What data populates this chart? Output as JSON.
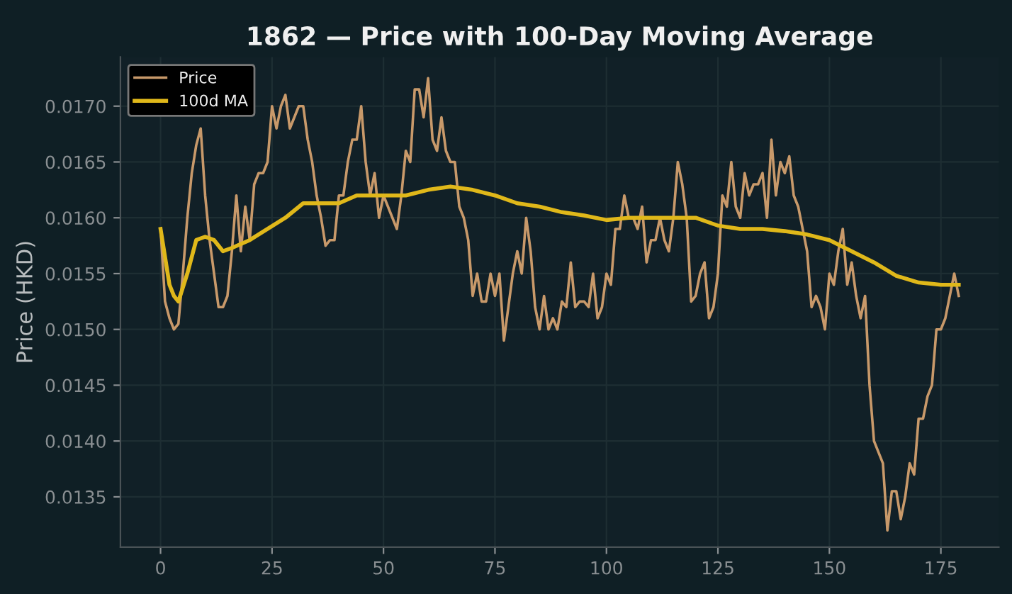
{
  "chart_data": {
    "type": "line",
    "title": "1862 — Price with 100-Day Moving Average",
    "ylabel": "Price (HKD)",
    "series": [
      {
        "name": "Price",
        "color": "#c8996a",
        "x": [
          0,
          1,
          2,
          3,
          4,
          5,
          6,
          7,
          8,
          9,
          10,
          11,
          12,
          13,
          14,
          15,
          16,
          17,
          18,
          19,
          20,
          21,
          22,
          23,
          24,
          25,
          26,
          27,
          28,
          29,
          30,
          31,
          32,
          33,
          34,
          35,
          36,
          37,
          38,
          39,
          40,
          41,
          42,
          43,
          44,
          45,
          46,
          47,
          48,
          49,
          50,
          51,
          52,
          53,
          54,
          55,
          56,
          57,
          58,
          59,
          60,
          61,
          62,
          63,
          64,
          65,
          66,
          67,
          68,
          69,
          70,
          71,
          72,
          73,
          74,
          75,
          76,
          77,
          78,
          79,
          80,
          81,
          82,
          83,
          84,
          85,
          86,
          87,
          88,
          89,
          90,
          91,
          92,
          93,
          94,
          95,
          96,
          97,
          98,
          99,
          100,
          101,
          102,
          103,
          104,
          105,
          106,
          107,
          108,
          109,
          110,
          111,
          112,
          113,
          114,
          115,
          116,
          117,
          118,
          119,
          120,
          121,
          122,
          123,
          124,
          125,
          126,
          127,
          128,
          129,
          130,
          131,
          132,
          133,
          134,
          135,
          136,
          137,
          138,
          139,
          140,
          141,
          142,
          143,
          144,
          145,
          146,
          147,
          148,
          149,
          150,
          151,
          152,
          153,
          154,
          155,
          156,
          157,
          158,
          159,
          160,
          161,
          162,
          163,
          164,
          165,
          166,
          167,
          168,
          169,
          170,
          171,
          172,
          173,
          174,
          175,
          176,
          177,
          178,
          179
        ],
        "values": [
          0.0159,
          0.01525,
          0.0151,
          0.015,
          0.01505,
          0.0155,
          0.016,
          0.0164,
          0.01665,
          0.0168,
          0.0162,
          0.0158,
          0.0155,
          0.0152,
          0.0152,
          0.0153,
          0.0157,
          0.0162,
          0.0157,
          0.0161,
          0.0158,
          0.0163,
          0.0164,
          0.0164,
          0.0165,
          0.017,
          0.0168,
          0.017,
          0.0171,
          0.0168,
          0.0169,
          0.017,
          0.017,
          0.0167,
          0.0165,
          0.0162,
          0.016,
          0.01575,
          0.0158,
          0.0158,
          0.0162,
          0.0162,
          0.0165,
          0.0167,
          0.0167,
          0.017,
          0.0165,
          0.0162,
          0.0164,
          0.016,
          0.0162,
          0.0161,
          0.016,
          0.0159,
          0.0162,
          0.0166,
          0.0165,
          0.01715,
          0.01715,
          0.0169,
          0.01725,
          0.0167,
          0.0166,
          0.0169,
          0.0166,
          0.0165,
          0.0165,
          0.0161,
          0.016,
          0.0158,
          0.0153,
          0.0155,
          0.01525,
          0.01525,
          0.0155,
          0.0153,
          0.0155,
          0.0149,
          0.0152,
          0.0155,
          0.0157,
          0.0155,
          0.016,
          0.0157,
          0.0152,
          0.015,
          0.0153,
          0.015,
          0.0151,
          0.015,
          0.01525,
          0.0152,
          0.0156,
          0.0152,
          0.01525,
          0.01525,
          0.0152,
          0.0155,
          0.0151,
          0.0152,
          0.0155,
          0.0154,
          0.0159,
          0.0159,
          0.0162,
          0.016,
          0.016,
          0.0159,
          0.0161,
          0.0156,
          0.0158,
          0.0158,
          0.016,
          0.0158,
          0.0157,
          0.016,
          0.0165,
          0.0163,
          0.016,
          0.01525,
          0.0153,
          0.0155,
          0.0156,
          0.0151,
          0.0152,
          0.0155,
          0.0162,
          0.0161,
          0.0165,
          0.0161,
          0.016,
          0.0164,
          0.0162,
          0.0163,
          0.0163,
          0.0164,
          0.016,
          0.0167,
          0.0162,
          0.0165,
          0.0164,
          0.01655,
          0.0162,
          0.0161,
          0.0159,
          0.0157,
          0.0152,
          0.0153,
          0.0152,
          0.015,
          0.0155,
          0.0154,
          0.0157,
          0.0159,
          0.0154,
          0.0156,
          0.0153,
          0.0151,
          0.0153,
          0.0145,
          0.014,
          0.0139,
          0.0138,
          0.0132,
          0.01355,
          0.01355,
          0.0133,
          0.0135,
          0.0138,
          0.0137,
          0.0142,
          0.0142,
          0.0144,
          0.0145,
          0.015,
          0.015,
          0.0151,
          0.0153,
          0.0155,
          0.0153
        ]
      },
      {
        "name": "100d MA",
        "color": "#e0b81a",
        "x": [
          0,
          2,
          3,
          4,
          6,
          8,
          10,
          12,
          14,
          16,
          20,
          24,
          28,
          32,
          36,
          40,
          44,
          50,
          55,
          60,
          65,
          70,
          75,
          80,
          85,
          90,
          95,
          100,
          105,
          110,
          115,
          120,
          125,
          130,
          135,
          140,
          145,
          150,
          155,
          160,
          165,
          170,
          175,
          179
        ],
        "values": [
          0.0159,
          0.0154,
          0.0153,
          0.01525,
          0.0155,
          0.0158,
          0.01583,
          0.0158,
          0.0157,
          0.01573,
          0.0158,
          0.0159,
          0.016,
          0.01613,
          0.01613,
          0.01613,
          0.0162,
          0.0162,
          0.0162,
          0.01625,
          0.01628,
          0.01625,
          0.0162,
          0.01613,
          0.0161,
          0.01605,
          0.01602,
          0.01598,
          0.016,
          0.016,
          0.016,
          0.016,
          0.01593,
          0.0159,
          0.0159,
          0.01588,
          0.01585,
          0.0158,
          0.0157,
          0.0156,
          0.01548,
          0.01542,
          0.0154,
          0.0154
        ]
      }
    ],
    "xlim": [
      -9,
      188
    ],
    "xticks": [
      0,
      25,
      50,
      75,
      100,
      125,
      150,
      175
    ],
    "ylim": [
      0.01305,
      0.01744
    ],
    "yticks": [
      0.0135,
      {
        "value": 0.014,
        "label": "0.0140"
      },
      0.0145,
      {
        "value": 0.015,
        "label": "0.0150"
      },
      0.0155,
      {
        "value": 0.016,
        "label": "0.0160"
      },
      0.0165,
      {
        "value": 0.017,
        "label": "0.0170"
      }
    ],
    "grid": true,
    "legend": "top left",
    "line_style": "solid",
    "marker": "none"
  }
}
